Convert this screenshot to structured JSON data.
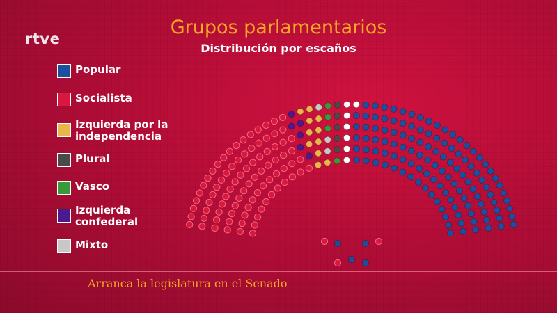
{
  "brand": {
    "logo": "rtve"
  },
  "footer": {
    "text": "Arranca la legislatura en el Senado"
  },
  "colors": {
    "background": "#b30d37",
    "title": "#f5a623",
    "Popular": "#1c4f9c",
    "Socialista": "#d9183f",
    "Izquierda por la independencia": "#e8b64a",
    "Plural": "#4a4a4a",
    "Vasco": "#3a9a3a",
    "Izquierda confederal": "#4b1a8c",
    "Mixto": "#c8c8c8",
    "vacant": "#ffffff"
  },
  "chart_data": {
    "type": "parliament",
    "title": "Grupos parlamentarios",
    "subtitle": "Distribución por escaños",
    "legend_position": "left",
    "legend": [
      "Popular",
      "Socialista",
      "Izquierda por la\nindependencia",
      "Plural",
      "Vasco",
      "Izquierda\nconfederal",
      "Mixto"
    ],
    "series": [
      {
        "name": "Popular",
        "seats": 139
      },
      {
        "name": "Socialista",
        "seats": 85
      },
      {
        "name": "Izquierda por la independencia",
        "seats": 11
      },
      {
        "name": "Plural",
        "seats": 5
      },
      {
        "name": "Vasco",
        "seats": 4
      },
      {
        "name": "Izquierda confederal",
        "seats": 6
      },
      {
        "name": "Mixto",
        "seats": 3
      },
      {
        "name": "vacant",
        "seats": 7
      }
    ]
  }
}
